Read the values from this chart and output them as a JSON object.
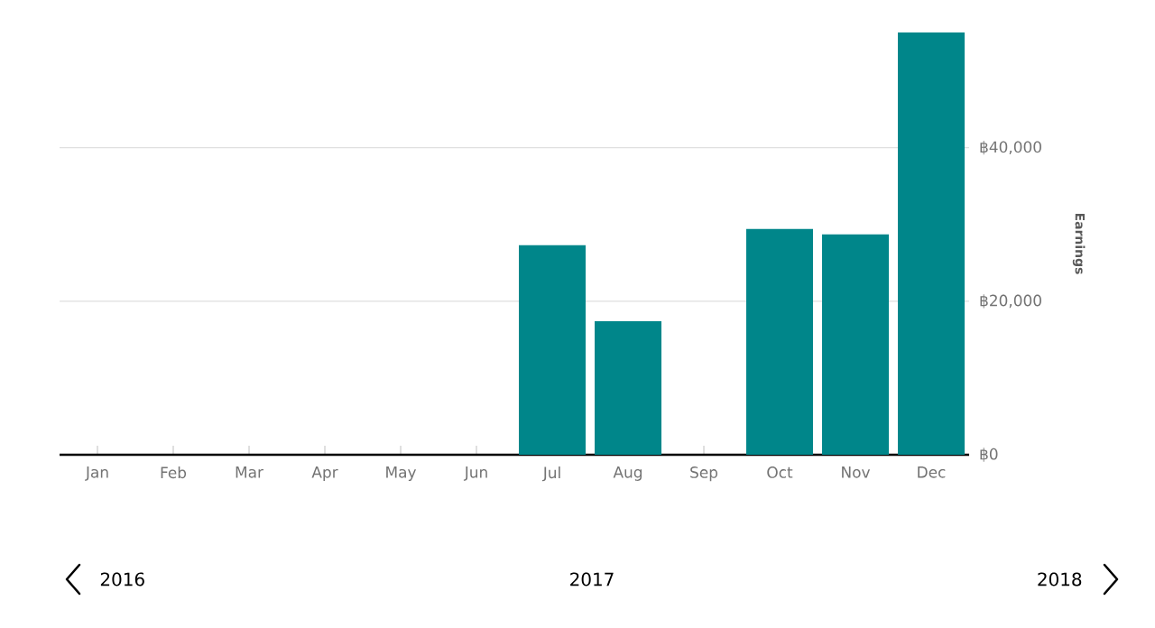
{
  "chart_data": {
    "type": "bar",
    "ylabel": "Earnings",
    "categories": [
      "Jan",
      "Feb",
      "Mar",
      "Apr",
      "May",
      "Jun",
      "Jul",
      "Aug",
      "Sep",
      "Oct",
      "Nov",
      "Dec"
    ],
    "values": [
      0,
      0,
      0,
      0,
      0,
      0,
      27300,
      17400,
      0,
      29400,
      28700,
      55000
    ],
    "color": "#00868a",
    "ylim": [
      0,
      55000
    ],
    "yticks": [
      {
        "value": 0,
        "label": "฿0"
      },
      {
        "value": 20000,
        "label": "฿20,000"
      },
      {
        "value": 40000,
        "label": "฿40,000"
      }
    ],
    "grid": "y",
    "annotations": [
      "2016",
      "2017",
      "2018"
    ]
  }
}
